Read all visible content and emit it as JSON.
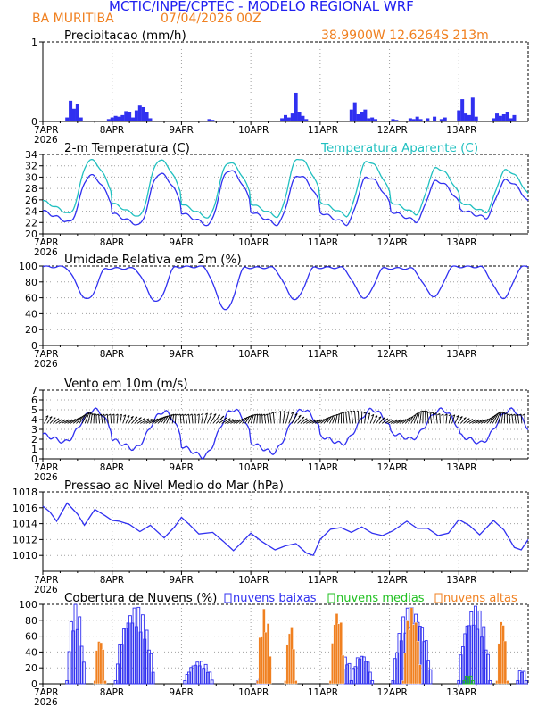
{
  "header": {
    "title": "MCTIC/INPE/CPTEC - MODELO REGIONAL WRF",
    "location": "BA MURITIBA",
    "run": "07/04/2026 00Z",
    "coords": "38.9900W 12.6264S 213m"
  },
  "colors": {
    "title": "#2020f0",
    "orange": "#f08020",
    "blue": "#3030f0",
    "cyan": "#20c0c0",
    "green": "#20c020",
    "grid": "#a0a0a0",
    "black": "#000000"
  },
  "time_axis": {
    "days": [
      "7APR",
      "8APR",
      "9APR",
      "10APR",
      "11APR",
      "12APR",
      "13APR"
    ],
    "year": "2026"
  },
  "chart_data": [
    {
      "id": "precip",
      "type": "bar",
      "title": "Precipitacao (mm/h)",
      "ylim": [
        0,
        1
      ],
      "yticks": [
        0,
        1
      ],
      "grid": true,
      "x": [
        0.35,
        0.4,
        0.45,
        0.5,
        0.55,
        0.95,
        1.0,
        1.05,
        1.1,
        1.15,
        1.2,
        1.25,
        1.3,
        1.35,
        1.4,
        1.45,
        1.5,
        1.55,
        2.4,
        2.45,
        3.45,
        3.5,
        3.55,
        3.6,
        3.65,
        3.7,
        3.75,
        3.8,
        4.45,
        4.5,
        4.55,
        4.6,
        4.65,
        4.7,
        4.75,
        4.8,
        5.05,
        5.1,
        5.3,
        5.35,
        5.4,
        5.45,
        5.55,
        5.65,
        5.75,
        5.8,
        6.0,
        6.05,
        6.1,
        6.15,
        6.2,
        6.25,
        6.5,
        6.55,
        6.6,
        6.65,
        6.7,
        6.75,
        6.8
      ],
      "values": [
        0.05,
        0.26,
        0.16,
        0.22,
        0.05,
        0.03,
        0.05,
        0.07,
        0.06,
        0.08,
        0.13,
        0.12,
        0.05,
        0.14,
        0.2,
        0.18,
        0.12,
        0.04,
        0.03,
        0.02,
        0.04,
        0.08,
        0.05,
        0.1,
        0.36,
        0.12,
        0.07,
        0.03,
        0.15,
        0.24,
        0.09,
        0.12,
        0.15,
        0.04,
        0.05,
        0.03,
        0.03,
        0.02,
        0.04,
        0.03,
        0.06,
        0.03,
        0.04,
        0.06,
        0.03,
        0.05,
        0.14,
        0.28,
        0.1,
        0.08,
        0.3,
        0.06,
        0.04,
        0.1,
        0.07,
        0.09,
        0.12,
        0.04,
        0.08
      ]
    },
    {
      "id": "temp",
      "type": "line",
      "title": "2-m Temperatura (C)",
      "ylim": [
        20,
        34
      ],
      "yticks": [
        20,
        22,
        24,
        26,
        28,
        30,
        32,
        34
      ],
      "grid": true,
      "series": [
        {
          "name": "2-m Temperatura (C)",
          "color": "#3030f0",
          "min": [
            22.0,
            21.5,
            21.5,
            21.6,
            21.7,
            22.2,
            22.8
          ],
          "max": [
            30.3,
            30.6,
            31.2,
            30.3,
            30.0,
            29.3,
            29.4
          ]
        },
        {
          "name": "Temperatura Aparente (C)",
          "color": "#20c0c0",
          "min": [
            23.5,
            23.0,
            22.8,
            23.0,
            23.2,
            23.5,
            23.8
          ],
          "max": [
            33.0,
            33.0,
            32.6,
            33.3,
            32.8,
            31.6,
            31.2
          ]
        }
      ]
    },
    {
      "id": "rh",
      "type": "line",
      "title": "Umidade Relativa em 2m (%)",
      "ylim": [
        0,
        100
      ],
      "yticks": [
        0,
        20,
        40,
        60,
        80,
        100
      ],
      "grid": true,
      "series": [
        {
          "name": "Umidade Relativa em 2m (%)",
          "color": "#3030f0",
          "min": [
            58,
            55,
            45,
            58,
            60,
            62,
            60
          ],
          "max": [
            99,
            97,
            99,
            98,
            98,
            97,
            99
          ]
        }
      ]
    },
    {
      "id": "wind",
      "type": "line",
      "title": "Vento em 10m (m/s)",
      "ylim": [
        0,
        7
      ],
      "yticks": [
        0,
        1,
        2,
        3,
        4,
        5,
        6,
        7
      ],
      "grid": true,
      "series": [
        {
          "name": "Vento em 10m (m/s)",
          "color": "#3030f0",
          "min": [
            1.7,
            1.0,
            0.2,
            0.6,
            1.5,
            2.0,
            1.6
          ],
          "max": [
            5.0,
            4.8,
            5.0,
            5.0,
            5.0,
            5.0,
            5.0
          ]
        }
      ]
    },
    {
      "id": "pressure",
      "type": "line",
      "title": "Pressao ao Nivel Medio do Mar (hPa)",
      "ylim": [
        1008,
        1018
      ],
      "yticks": [
        1010,
        1012,
        1014,
        1016,
        1018
      ],
      "grid": true,
      "x": [
        0,
        0.1,
        0.2,
        0.35,
        0.5,
        0.6,
        0.75,
        0.9,
        1.0,
        1.1,
        1.25,
        1.4,
        1.55,
        1.75,
        1.9,
        2.0,
        2.1,
        2.25,
        2.45,
        2.6,
        2.75,
        2.9,
        3.0,
        3.15,
        3.35,
        3.5,
        3.65,
        3.8,
        3.9,
        4.0,
        4.15,
        4.3,
        4.45,
        4.6,
        4.75,
        4.9,
        5.05,
        5.25,
        5.4,
        5.55,
        5.7,
        5.85,
        6.0,
        6.15,
        6.3,
        6.5,
        6.65,
        6.8,
        6.9,
        7.0
      ],
      "values": [
        1016.2,
        1015.5,
        1014.3,
        1016.6,
        1015.2,
        1013.8,
        1015.8,
        1015.0,
        1014.4,
        1014.3,
        1013.9,
        1013.0,
        1013.8,
        1012.2,
        1013.6,
        1014.8,
        1014.0,
        1012.7,
        1012.9,
        1011.8,
        1010.6,
        1011.9,
        1012.8,
        1011.8,
        1010.7,
        1011.2,
        1011.5,
        1010.3,
        1010.0,
        1012.0,
        1013.3,
        1013.5,
        1012.9,
        1013.6,
        1012.8,
        1012.5,
        1013.1,
        1014.3,
        1013.4,
        1013.4,
        1012.5,
        1012.8,
        1014.5,
        1013.8,
        1012.6,
        1014.4,
        1013.2,
        1011.0,
        1010.7,
        1012.0
      ]
    },
    {
      "id": "clouds",
      "type": "bar",
      "title": "Cobertura de Nuvens (%)",
      "ylim": [
        0,
        100
      ],
      "yticks": [
        0,
        20,
        40,
        60,
        80,
        100
      ],
      "grid": true,
      "series": [
        {
          "name": "nuvens baixas",
          "color": "#3030f0",
          "style": "outline",
          "clusters": [
            [
              0.35,
              0.6,
              100
            ],
            [
              1.05,
              1.6,
              100
            ],
            [
              2.05,
              2.45,
              30
            ],
            [
              3.1,
              3.25,
              8
            ],
            [
              4.3,
              4.45,
              35
            ],
            [
              4.45,
              4.75,
              40
            ],
            [
              5.05,
              5.6,
              100
            ],
            [
              6.0,
              6.45,
              100
            ],
            [
              6.85,
              6.97,
              20
            ]
          ]
        },
        {
          "name": "nuvens medias",
          "color": "#20c020",
          "style": "outline",
          "clusters": [
            [
              6.08,
              6.2,
              12
            ]
          ]
        },
        {
          "name": "nuvens altas",
          "color": "#f08020",
          "style": "solid",
          "clusters": [
            [
              0.75,
              0.9,
              65
            ],
            [
              3.1,
              3.3,
              95
            ],
            [
              3.5,
              3.65,
              80
            ],
            [
              4.15,
              4.35,
              100
            ],
            [
              5.2,
              5.45,
              100
            ],
            [
              6.55,
              6.7,
              90
            ]
          ]
        }
      ]
    }
  ]
}
